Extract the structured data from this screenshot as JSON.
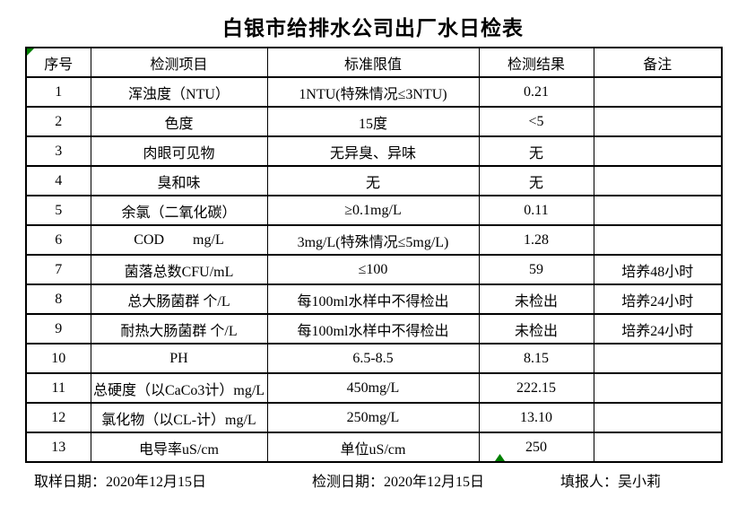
{
  "title": "白银市给排水公司出厂水日检表",
  "table": {
    "headers": [
      "序号",
      "检测项目",
      "标准限值",
      "检测结果",
      "备注"
    ],
    "rows": [
      {
        "no": "1",
        "item": "浑浊度（NTU）",
        "limit": "1NTU(特殊情况≤3NTU)",
        "result": "0.21",
        "note": ""
      },
      {
        "no": "2",
        "item": "色度",
        "limit": "15度",
        "result": "<5",
        "note": ""
      },
      {
        "no": "3",
        "item": "肉眼可见物",
        "limit": "无异臭、异味",
        "result": "无",
        "note": ""
      },
      {
        "no": "4",
        "item": "臭和味",
        "limit": "无",
        "result": "无",
        "note": ""
      },
      {
        "no": "5",
        "item": "余氯（二氧化碳）",
        "limit": "≥0.1mg/L",
        "result": "0.11",
        "note": ""
      },
      {
        "no": "6",
        "item": "COD        mg/L",
        "limit": "3mg/L(特殊情况≤5mg/L)",
        "result": "1.28",
        "note": ""
      },
      {
        "no": "7",
        "item": "菌落总数CFU/mL",
        "limit": "≤100",
        "result": "59",
        "note": "培养48小时"
      },
      {
        "no": "8",
        "item": "总大肠菌群 个/L",
        "limit": "每100ml水样中不得检出",
        "result": "未检出",
        "note": "培养24小时"
      },
      {
        "no": "9",
        "item": "耐热大肠菌群 个/L",
        "limit": "每100ml水样中不得检出",
        "result": "未检出",
        "note": "培养24小时"
      },
      {
        "no": "10",
        "item": "PH",
        "limit": "6.5-8.5",
        "result": "8.15",
        "note": ""
      },
      {
        "no": "11",
        "item": "总硬度（以CaCo3计）mg/L",
        "limit": "450mg/L",
        "result": "222.15",
        "note": ""
      },
      {
        "no": "12",
        "item": "氯化物（以CL-计）mg/L",
        "limit": "250mg/L",
        "result": "13.10",
        "note": ""
      },
      {
        "no": "13",
        "item": "电导率uS/cm",
        "limit": "单位uS/cm",
        "result": "250",
        "note": ""
      }
    ]
  },
  "footer": {
    "sampling_date": "取样日期：2020年12月15日",
    "testing_date": "检测日期：2020年12月15日",
    "reporter": "填报人：吴小莉"
  },
  "colors": {
    "marker_green": "#008000",
    "border": "#000000",
    "background": "#ffffff"
  }
}
